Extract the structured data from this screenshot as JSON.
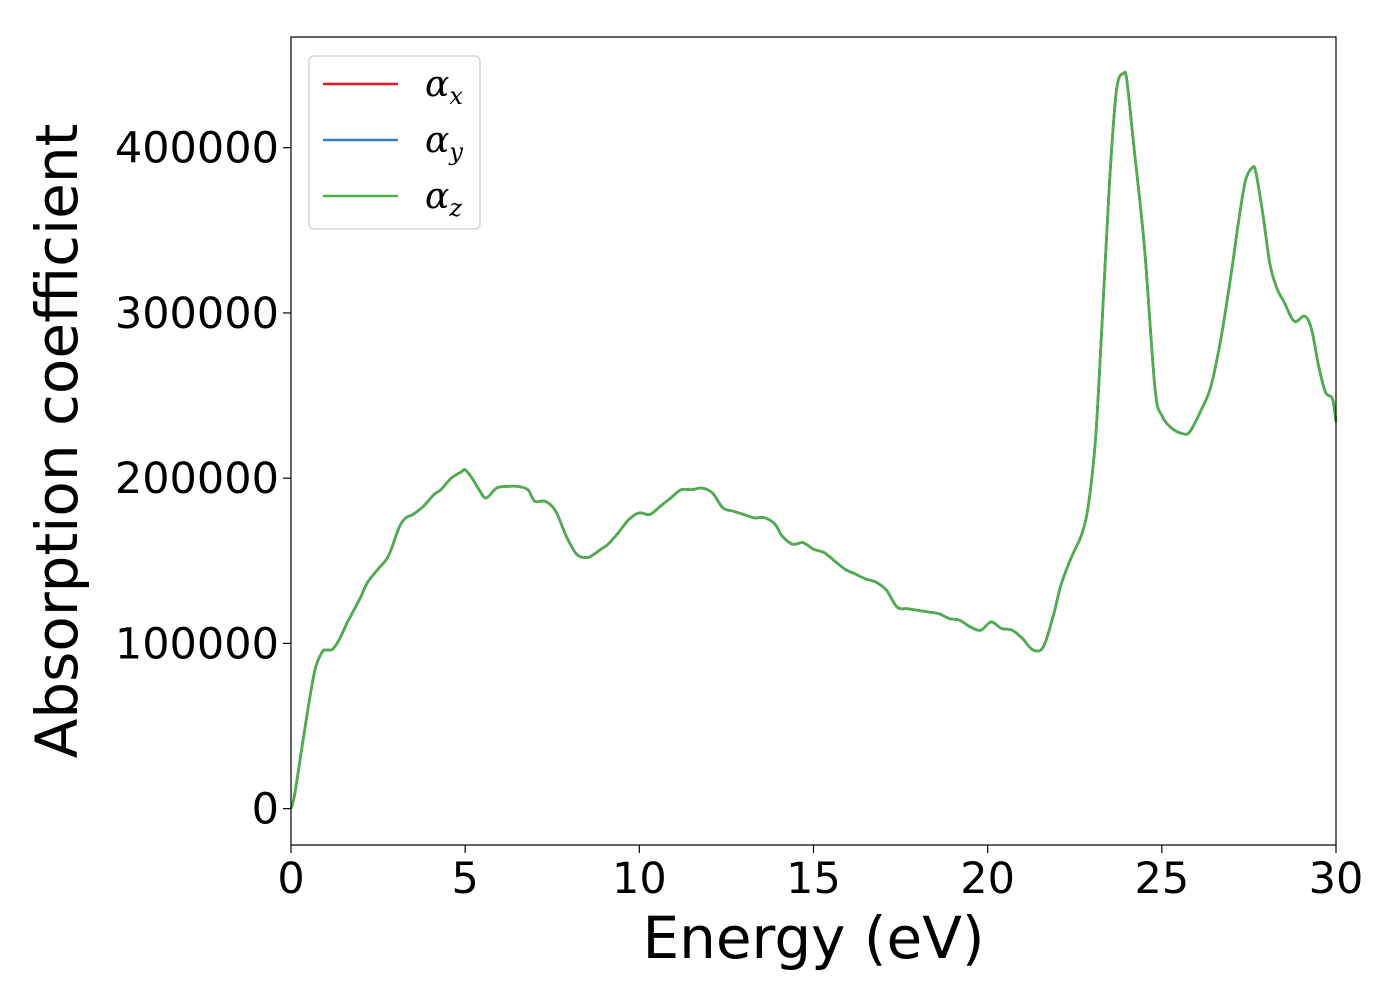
{
  "chart_data": {
    "type": "line",
    "title": "",
    "xlabel": "Energy (eV)",
    "ylabel": "Absorption coefficient",
    "xlim": [
      0,
      30
    ],
    "ylim": [
      -22000,
      467000
    ],
    "xticks": [
      0,
      5,
      10,
      15,
      20,
      25,
      30
    ],
    "yticks": [
      0,
      100000,
      200000,
      300000,
      400000
    ],
    "grid": false,
    "legend_position": "top-left",
    "series": [
      {
        "name": "α",
        "subscript": "x",
        "color": "#e41a1c"
      },
      {
        "name": "α",
        "subscript": "y",
        "color": "#377eb8"
      },
      {
        "name": "α",
        "subscript": "z",
        "color": "#4daf4a"
      }
    ],
    "x": [
      0,
      0.1,
      0.3,
      0.5,
      0.7,
      0.9,
      1.0,
      1.2,
      1.4,
      1.6,
      1.8,
      2.0,
      2.2,
      2.5,
      2.8,
      3.1,
      3.3,
      3.5,
      3.8,
      4.1,
      4.3,
      4.6,
      4.9,
      5.0,
      5.2,
      5.4,
      5.6,
      5.9,
      6.2,
      6.5,
      6.8,
      7.0,
      7.3,
      7.6,
      7.9,
      8.2,
      8.5,
      8.7,
      8.9,
      9.1,
      9.4,
      9.7,
      10.0,
      10.3,
      10.6,
      10.9,
      11.2,
      11.5,
      11.8,
      12.1,
      12.4,
      12.7,
      13.0,
      13.3,
      13.6,
      13.9,
      14.1,
      14.4,
      14.7,
      15.0,
      15.3,
      15.6,
      15.9,
      16.2,
      16.5,
      16.8,
      17.1,
      17.4,
      17.7,
      18.0,
      18.3,
      18.6,
      18.9,
      19.2,
      19.5,
      19.8,
      20.1,
      20.4,
      20.7,
      21.0,
      21.3,
      21.6,
      21.9,
      22.1,
      22.4,
      22.7,
      22.9,
      23.1,
      23.3,
      23.5,
      23.7,
      23.9,
      24.0,
      24.2,
      24.5,
      24.8,
      25.0,
      25.3,
      25.6,
      25.8,
      26.1,
      26.4,
      26.7,
      27.0,
      27.2,
      27.4,
      27.6,
      27.7,
      27.9,
      28.1,
      28.3,
      28.5,
      28.8,
      29.1,
      29.3,
      29.5,
      29.7,
      29.9,
      30.0
    ],
    "values": [
      0,
      8000,
      35000,
      62000,
      85000,
      95000,
      96000,
      96500,
      103000,
      112000,
      120000,
      128000,
      137000,
      145000,
      153000,
      170000,
      176000,
      178000,
      183000,
      190000,
      193000,
      200000,
      204000,
      205000,
      200000,
      193000,
      188000,
      194000,
      195000,
      195000,
      193000,
      186000,
      186000,
      180000,
      165000,
      154000,
      152000,
      154000,
      157000,
      160000,
      167000,
      175000,
      179000,
      178000,
      183000,
      188000,
      193000,
      193000,
      194000,
      191000,
      182000,
      180000,
      178000,
      176000,
      176000,
      172000,
      165000,
      160000,
      161000,
      157000,
      155000,
      150000,
      145000,
      142000,
      139000,
      137000,
      132000,
      122000,
      121000,
      120000,
      119000,
      118000,
      115000,
      114000,
      110000,
      108000,
      113000,
      109000,
      108000,
      103000,
      96000,
      98000,
      118000,
      135000,
      152000,
      166000,
      185000,
      225000,
      300000,
      380000,
      435000,
      445000,
      440000,
      400000,
      340000,
      255000,
      238000,
      230000,
      227000,
      228000,
      240000,
      255000,
      285000,
      325000,
      355000,
      380000,
      388000,
      385000,
      360000,
      330000,
      315000,
      307000,
      295000,
      298000,
      290000,
      268000,
      252000,
      248000,
      234000
    ]
  }
}
